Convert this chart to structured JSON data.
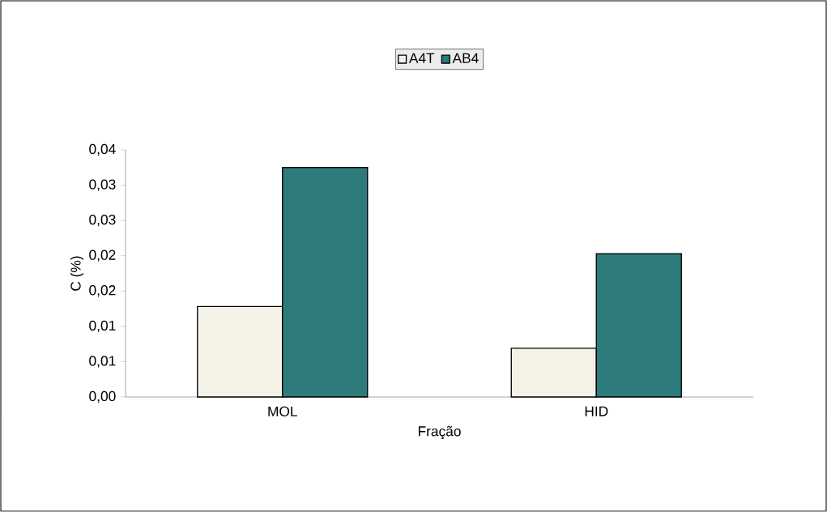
{
  "chart_data": {
    "type": "bar",
    "xlabel": "Fração",
    "ylabel": "C (%)",
    "categories": [
      "MOL",
      "HID"
    ],
    "series": [
      {
        "name": "A4T",
        "color": "#f4f2e6",
        "values": [
          0.0128,
          0.0069
        ]
      },
      {
        "name": "AB4",
        "color": "#2e7b7b",
        "values": [
          0.0325,
          0.0203
        ]
      }
    ],
    "ylim": [
      0,
      0.035
    ],
    "yticks": [
      {
        "value": 0,
        "label": "0,00"
      },
      {
        "value": 0.005,
        "label": "0,01"
      },
      {
        "value": 0.01,
        "label": "0,01"
      },
      {
        "value": 0.015,
        "label": "0,02"
      },
      {
        "value": 0.02,
        "label": "0,02"
      },
      {
        "value": 0.025,
        "label": "0,03"
      },
      {
        "value": 0.03,
        "label": "0,03"
      },
      {
        "value": 0.035,
        "label": "0,04"
      }
    ],
    "legend": "top",
    "grid": false
  }
}
